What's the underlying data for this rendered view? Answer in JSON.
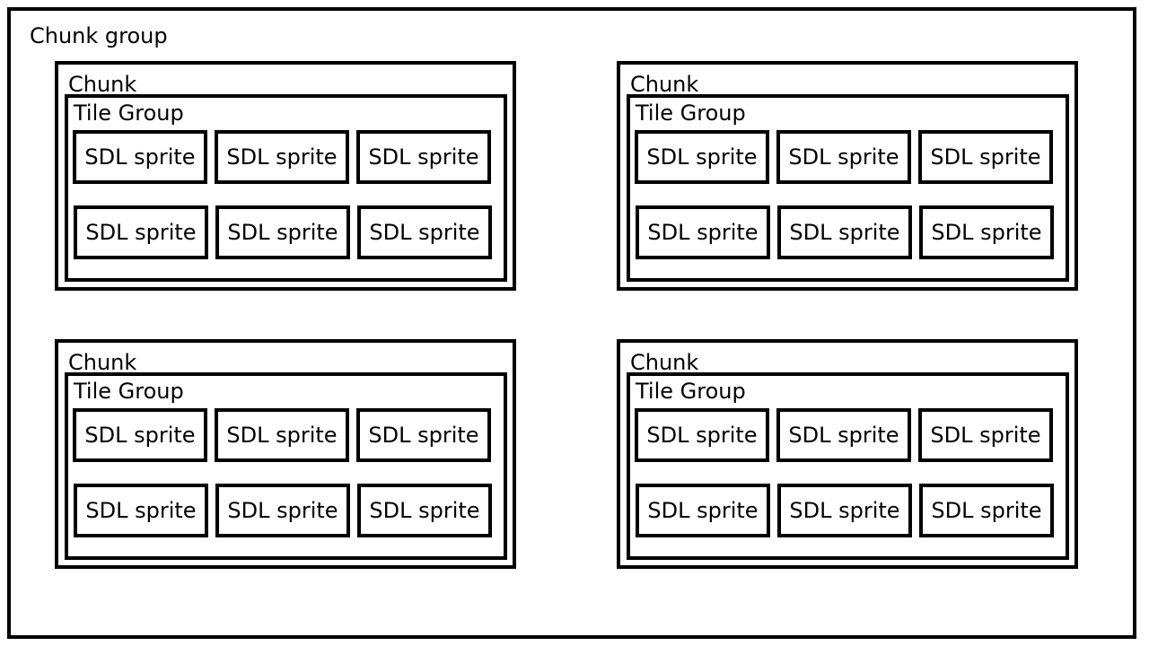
{
  "diagram": {
    "outer_label": "Chunk group",
    "chunks": [
      {
        "label": "Chunk",
        "tile_group": {
          "label": "Tile Group",
          "sprites": [
            "SDL sprite",
            "SDL sprite",
            "SDL sprite",
            "SDL sprite",
            "SDL sprite",
            "SDL sprite"
          ]
        }
      },
      {
        "label": "Chunk",
        "tile_group": {
          "label": "Tile Group",
          "sprites": [
            "SDL sprite",
            "SDL sprite",
            "SDL sprite",
            "SDL sprite",
            "SDL sprite",
            "SDL sprite"
          ]
        }
      },
      {
        "label": "Chunk",
        "tile_group": {
          "label": "Tile Group",
          "sprites": [
            "SDL sprite",
            "SDL sprite",
            "SDL sprite",
            "SDL sprite",
            "SDL sprite",
            "SDL sprite"
          ]
        }
      },
      {
        "label": "Chunk",
        "tile_group": {
          "label": "Tile Group",
          "sprites": [
            "SDL sprite",
            "SDL sprite",
            "SDL sprite",
            "SDL sprite",
            "SDL sprite",
            "SDL sprite"
          ]
        }
      }
    ]
  }
}
